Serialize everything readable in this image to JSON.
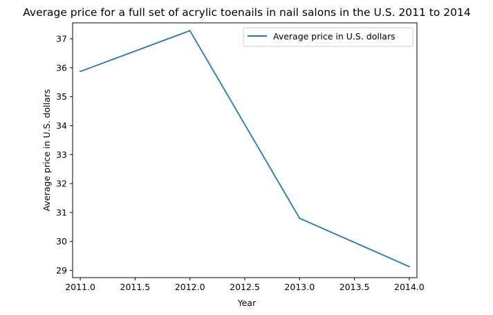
{
  "chart_data": {
    "type": "line",
    "title": "Average price for a full set of acrylic toenails in nail salons in the U.S. 2011 to 2014",
    "xlabel": "Year",
    "ylabel": "Average price in U.S. dollars",
    "xlim": [
      2010.93,
      2014.07
    ],
    "ylim": [
      28.75,
      37.55
    ],
    "xticks": [
      2011.0,
      2011.5,
      2012.0,
      2012.5,
      2013.0,
      2013.5,
      2014.0
    ],
    "xtick_labels": [
      "2011.0",
      "2011.5",
      "2012.0",
      "2012.5",
      "2013.0",
      "2013.5",
      "2014.0"
    ],
    "yticks": [
      29,
      30,
      31,
      32,
      33,
      34,
      35,
      36,
      37
    ],
    "ytick_labels": [
      "29",
      "30",
      "31",
      "32",
      "33",
      "34",
      "35",
      "36",
      "37"
    ],
    "grid": false,
    "legend_position": "top-right",
    "series": [
      {
        "name": "Average price in U.S. dollars",
        "color": "#1f77b4",
        "x": [
          2011,
          2012,
          2013,
          2014
        ],
        "y": [
          35.87,
          37.28,
          30.8,
          29.13
        ]
      }
    ]
  }
}
